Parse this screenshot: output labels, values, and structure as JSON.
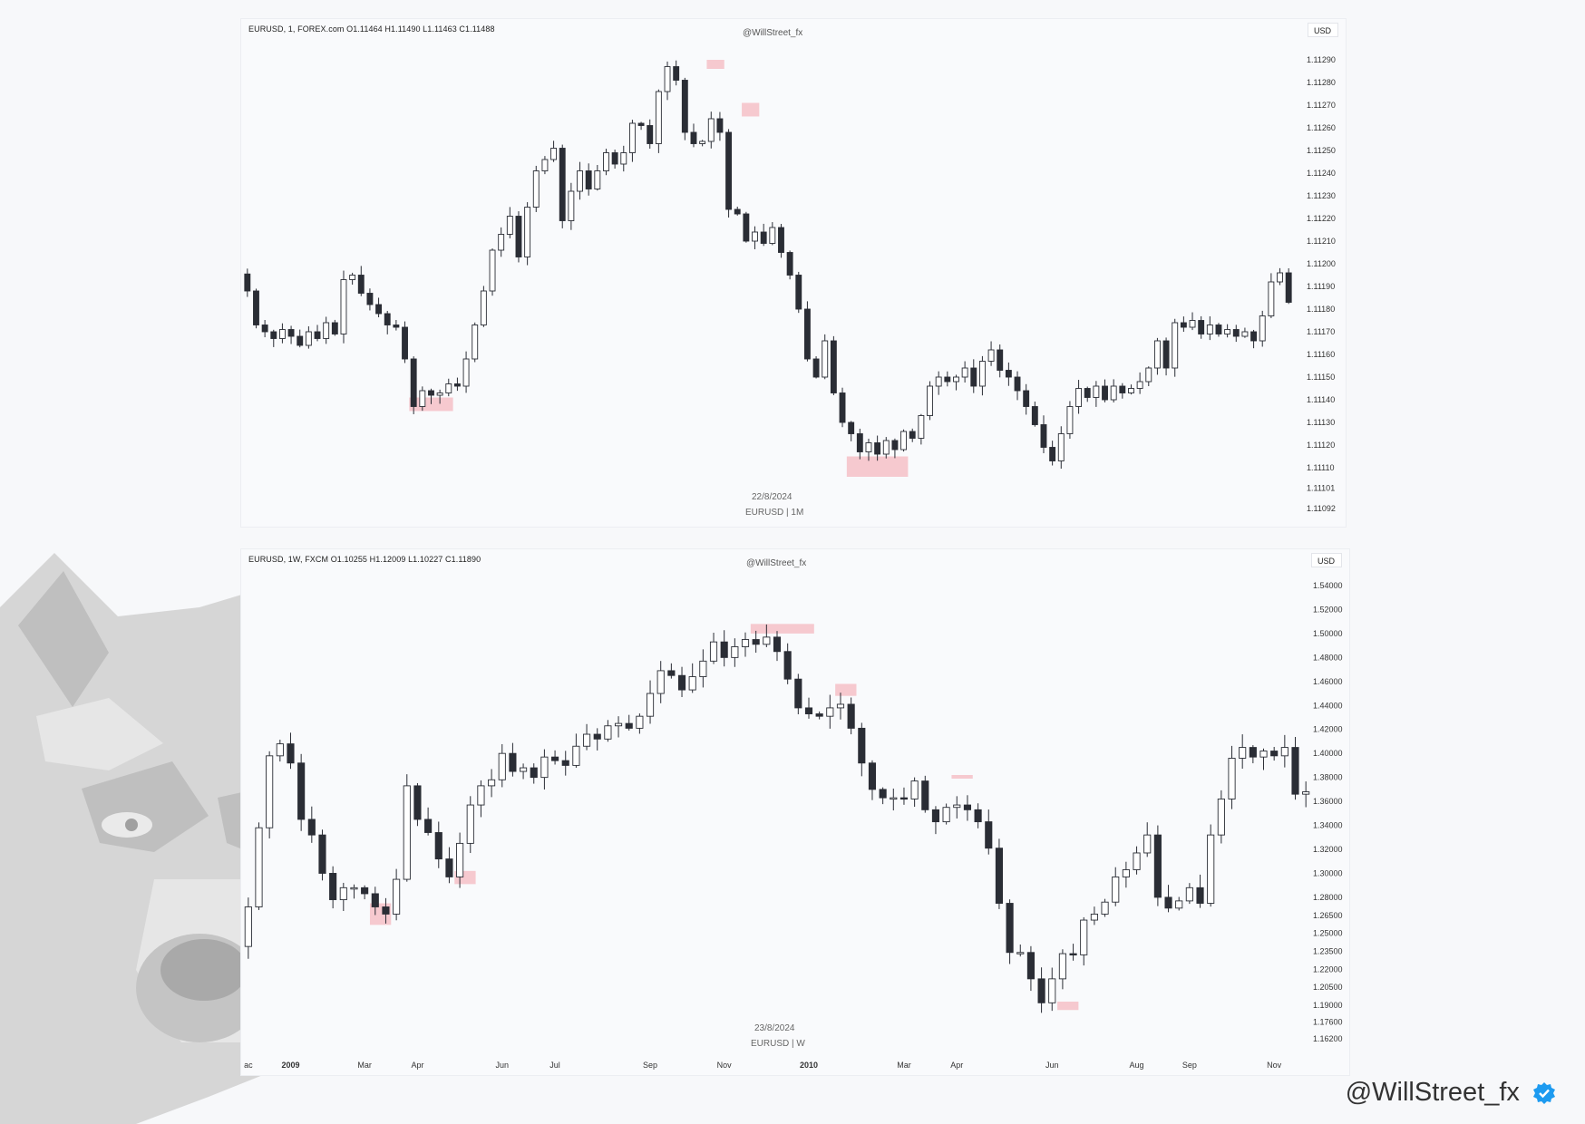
{
  "handle": "@WillStreet_fx",
  "colors": {
    "bull_fill": "#ffffff",
    "bear_fill": "#2a2d35",
    "wick": "#2a2d35",
    "highlight": "#f6c9cf"
  },
  "chart_data": [
    {
      "type": "candlestick",
      "header": "EURUSD, 1, FOREX.com  O1.11464  H1.11490  L1.11463  C1.11488",
      "watermark": "@WillStreet_fx",
      "currency": "USD",
      "date_caption": "22/8/2024",
      "symbol_caption": "EURUSD | 1M",
      "yticks": [
        "1.11290",
        "1.11280",
        "1.11270",
        "1.11260",
        "1.11250",
        "1.11240",
        "1.11230",
        "1.11220",
        "1.11210",
        "1.11200",
        "1.11190",
        "1.11180",
        "1.11170",
        "1.11160",
        "1.11150",
        "1.11140",
        "1.11130",
        "1.11120",
        "1.11110",
        "1.11101",
        "1.11092"
      ],
      "closes": [
        1.11188,
        1.11173,
        1.1117,
        1.11167,
        1.11171,
        1.11168,
        1.11164,
        1.1117,
        1.11167,
        1.11174,
        1.11169,
        1.11193,
        1.11195,
        1.11187,
        1.11182,
        1.11178,
        1.11173,
        1.11172,
        1.11158,
        1.11137,
        1.11144,
        1.11142,
        1.11143,
        1.11147,
        1.11146,
        1.11158,
        1.11173,
        1.11188,
        1.11206,
        1.11213,
        1.11221,
        1.11203,
        1.11225,
        1.11241,
        1.11246,
        1.11251,
        1.11219,
        1.11232,
        1.11241,
        1.11233,
        1.11241,
        1.11249,
        1.11244,
        1.11249,
        1.11262,
        1.11261,
        1.11253,
        1.11276,
        1.11287,
        1.11281,
        1.11258,
        1.11253,
        1.11254,
        1.11264,
        1.11258,
        1.11224,
        1.11222,
        1.1121,
        1.11214,
        1.11209,
        1.11216,
        1.11205,
        1.11195,
        1.1118,
        1.11158,
        1.1115,
        1.11166,
        1.11143,
        1.1113,
        1.11125,
        1.11117,
        1.11121,
        1.11116,
        1.11122,
        1.11118,
        1.11126,
        1.11123,
        1.11133,
        1.11146,
        1.1115,
        1.11148,
        1.1115,
        1.11154,
        1.11146,
        1.11157,
        1.11162,
        1.11153,
        1.1115,
        1.11144,
        1.11137,
        1.11129,
        1.11119,
        1.11113,
        1.11125,
        1.11137,
        1.11145,
        1.11141,
        1.11146,
        1.1114,
        1.11146,
        1.11143,
        1.11145,
        1.11148,
        1.11154,
        1.11166,
        1.11154,
        1.11174,
        1.11172,
        1.11175,
        1.11169,
        1.11173,
        1.11169,
        1.11171,
        1.11168,
        1.1117,
        1.11166,
        1.11177,
        1.11192,
        1.11196,
        1.11183
      ],
      "highlights": [
        {
          "from": 1.11135,
          "to": 1.11141,
          "first": 19,
          "last": 23
        },
        {
          "from": 1.11106,
          "to": 1.11115,
          "first": 69,
          "last": 75
        },
        {
          "from": 1.11286,
          "to": 1.1129,
          "first": 53,
          "last": 54
        },
        {
          "from": 1.11265,
          "to": 1.11271,
          "first": 57,
          "last": 58
        }
      ]
    },
    {
      "type": "candlestick",
      "header": "EURUSD, 1W, FXCM  O1.10255  H1.12009  L1.10227  C1.11890",
      "watermark": "@WillStreet_fx",
      "currency": "USD",
      "date_caption": "23/8/2024",
      "symbol_caption": "EURUSD | W",
      "yticks": [
        "1.54000",
        "1.52000",
        "1.50000",
        "1.48000",
        "1.46000",
        "1.44000",
        "1.42000",
        "1.40000",
        "1.38000",
        "1.36000",
        "1.34000",
        "1.32000",
        "1.30000",
        "1.28000",
        "1.26500",
        "1.25000",
        "1.23500",
        "1.22000",
        "1.20500",
        "1.19000",
        "1.17600",
        "1.16200"
      ],
      "xticks": [
        {
          "label": "ac",
          "major": false,
          "bar": 0
        },
        {
          "label": "2009",
          "major": true,
          "bar": 4
        },
        {
          "label": "Mar",
          "major": false,
          "bar": 11
        },
        {
          "label": "Apr",
          "major": false,
          "bar": 16
        },
        {
          "label": "Jun",
          "major": false,
          "bar": 24
        },
        {
          "label": "Jul",
          "major": false,
          "bar": 29
        },
        {
          "label": "Sep",
          "major": false,
          "bar": 38
        },
        {
          "label": "Nov",
          "major": false,
          "bar": 45
        },
        {
          "label": "2010",
          "major": true,
          "bar": 53
        },
        {
          "label": "Mar",
          "major": false,
          "bar": 62
        },
        {
          "label": "Apr",
          "major": false,
          "bar": 67
        },
        {
          "label": "Jun",
          "major": false,
          "bar": 76
        },
        {
          "label": "Aug",
          "major": false,
          "bar": 84
        },
        {
          "label": "Sep",
          "major": false,
          "bar": 89
        },
        {
          "label": "Nov",
          "major": false,
          "bar": 97
        }
      ],
      "closes": [
        1.272,
        1.338,
        1.398,
        1.408,
        1.392,
        1.345,
        1.332,
        1.3,
        1.278,
        1.288,
        1.288,
        1.283,
        1.272,
        1.266,
        1.295,
        1.373,
        1.345,
        1.334,
        1.312,
        1.297,
        1.325,
        1.357,
        1.373,
        1.378,
        1.4,
        1.385,
        1.388,
        1.38,
        1.397,
        1.394,
        1.39,
        1.406,
        1.416,
        1.412,
        1.423,
        1.425,
        1.421,
        1.431,
        1.45,
        1.469,
        1.465,
        1.453,
        1.464,
        1.477,
        1.493,
        1.48,
        1.489,
        1.495,
        1.491,
        1.497,
        1.485,
        1.462,
        1.438,
        1.433,
        1.431,
        1.438,
        1.441,
        1.421,
        1.392,
        1.37,
        1.363,
        1.363,
        1.362,
        1.377,
        1.353,
        1.343,
        1.355,
        1.357,
        1.353,
        1.343,
        1.321,
        1.275,
        1.234,
        1.234,
        1.212,
        1.192,
        1.212,
        1.233,
        1.232,
        1.261,
        1.266,
        1.276,
        1.297,
        1.303,
        1.317,
        1.332,
        1.28,
        1.271,
        1.277,
        1.288,
        1.275,
        1.332,
        1.362,
        1.396,
        1.405,
        1.397,
        1.402,
        1.398,
        1.405,
        1.366,
        1.368
      ],
      "highlights": [
        {
          "from": 1.257,
          "to": 1.275,
          "first": 12,
          "last": 13
        },
        {
          "from": 1.291,
          "to": 1.302,
          "first": 20,
          "last": 21
        },
        {
          "from": 1.5,
          "to": 1.508,
          "first": 48,
          "last": 53
        },
        {
          "from": 1.448,
          "to": 1.458,
          "first": 56,
          "last": 57
        },
        {
          "from": 1.379,
          "to": 1.382,
          "first": 67,
          "last": 68
        },
        {
          "from": 1.186,
          "to": 1.193,
          "first": 77,
          "last": 78
        }
      ]
    }
  ]
}
